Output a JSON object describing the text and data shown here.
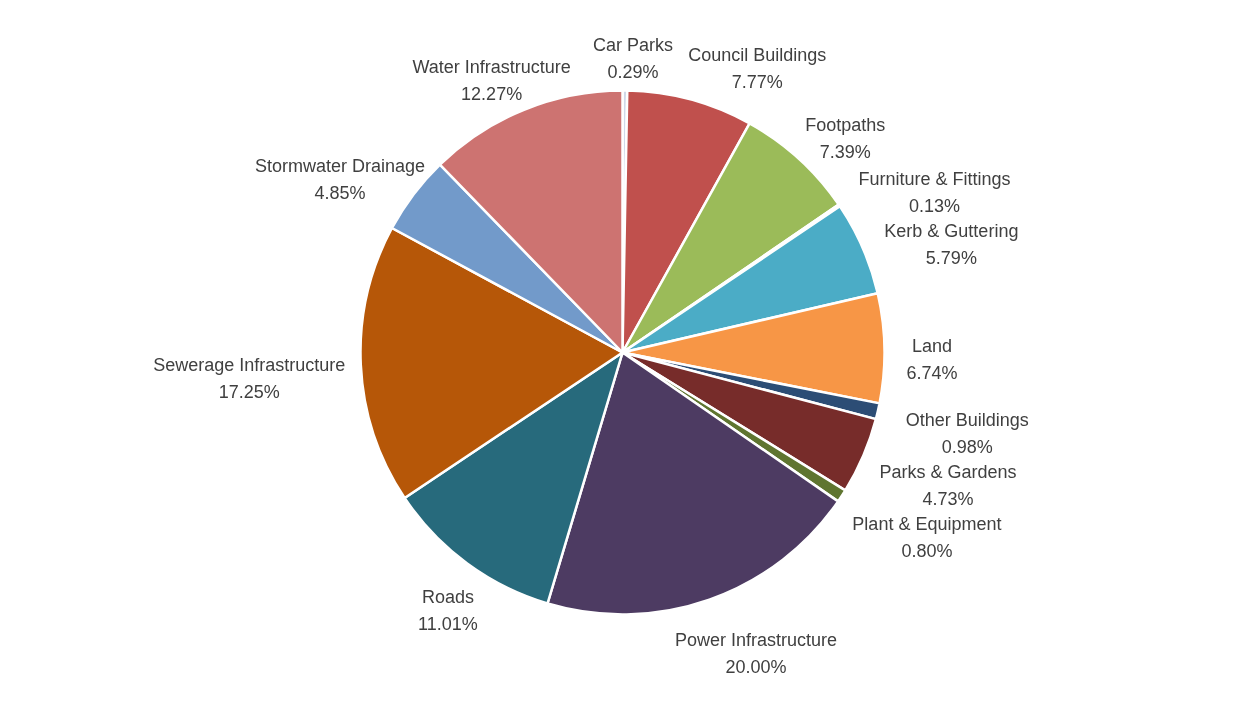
{
  "chart_data": {
    "type": "pie",
    "categories": [
      "Car Parks",
      "Council Buildings",
      "Footpaths",
      "Furniture & Fittings",
      "Kerb & Guttering",
      "Land",
      "Other Buildings",
      "Parks & Gardens",
      "Plant & Equipment",
      "Power Infrastructure",
      "Roads",
      "Sewerage Infrastructure",
      "Stormwater Drainage",
      "Water Infrastructure"
    ],
    "values": [
      0.29,
      7.77,
      7.39,
      0.13,
      5.79,
      6.74,
      0.98,
      4.73,
      0.8,
      20.0,
      11.01,
      17.25,
      4.85,
      12.27
    ],
    "colors": [
      "#d0d8e8",
      "#c0504d",
      "#9bbb59",
      "#8064a2",
      "#4bacc6",
      "#f79646",
      "#2c4d75",
      "#772c2a",
      "#5f7530",
      "#4d3b62",
      "#276a7c",
      "#b65708",
      "#729aca",
      "#cd7371"
    ],
    "value_labels": [
      "0.29%",
      "7.77%",
      "7.39%",
      "0.13%",
      "5.79%",
      "6.74%",
      "0.98%",
      "4.73%",
      "0.80%",
      "20.00%",
      "11.01%",
      "17.25%",
      "4.85%",
      "12.27%"
    ]
  }
}
